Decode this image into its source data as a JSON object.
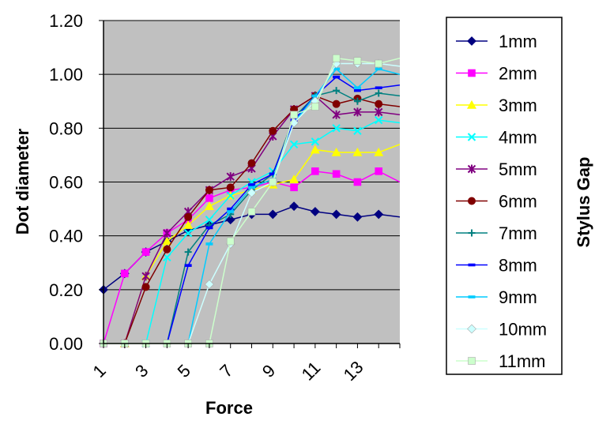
{
  "chart_data": {
    "type": "line",
    "title": "",
    "xlabel": "Force",
    "ylabel": "Dot diameter",
    "legend_title": "Stylus Gap",
    "legend_position": "right",
    "grid": "horizontal",
    "plot_background": "#c0c0c0",
    "xlim": [
      1,
      15
    ],
    "ylim": [
      0,
      1.2
    ],
    "x_ticks": [
      1,
      3,
      5,
      7,
      9,
      11,
      13
    ],
    "y_ticks": [
      "0.00",
      "0.20",
      "0.40",
      "0.60",
      "0.80",
      "1.00",
      "1.20"
    ],
    "series": [
      {
        "name": "1mm",
        "color": "#000080",
        "marker": "diamond",
        "x": [
          1,
          2,
          3,
          4,
          5,
          6,
          7,
          8,
          9,
          10,
          11,
          12,
          13,
          14,
          15
        ],
        "y": [
          0.2,
          0.26,
          0.34,
          0.38,
          0.42,
          0.44,
          0.46,
          0.48,
          0.48,
          0.51,
          0.49,
          0.48,
          0.47,
          0.48,
          0.47
        ]
      },
      {
        "name": "2mm",
        "color": "#ff00ff",
        "marker": "square",
        "x": [
          1,
          2,
          3,
          4,
          5,
          6,
          7,
          8,
          9,
          10,
          11,
          12,
          13,
          14,
          15
        ],
        "y": [
          0.0,
          0.26,
          0.34,
          0.41,
          0.46,
          0.54,
          0.57,
          0.58,
          0.6,
          0.58,
          0.64,
          0.63,
          0.6,
          0.64,
          0.6
        ]
      },
      {
        "name": "3mm",
        "color": "#ffff00",
        "marker": "triangle",
        "x": [
          2,
          3,
          4,
          5,
          6,
          7,
          8,
          9,
          10,
          11,
          12,
          13,
          14,
          15
        ],
        "y": [
          0.0,
          0.25,
          0.38,
          0.44,
          0.51,
          0.55,
          0.57,
          0.59,
          0.61,
          0.72,
          0.71,
          0.71,
          0.71,
          0.74
        ]
      },
      {
        "name": "4mm",
        "color": "#00ffff",
        "marker": "x",
        "x": [
          3,
          4,
          5,
          6,
          7,
          8,
          9,
          10,
          11,
          12,
          13,
          14,
          15
        ],
        "y": [
          0.0,
          0.32,
          0.41,
          0.46,
          0.55,
          0.6,
          0.64,
          0.74,
          0.75,
          0.8,
          0.79,
          0.83,
          0.82
        ]
      },
      {
        "name": "5mm",
        "color": "#800080",
        "marker": "star",
        "x": [
          2,
          3,
          4,
          5,
          6,
          7,
          8,
          9,
          10,
          11,
          12,
          13,
          14,
          15
        ],
        "y": [
          0.0,
          0.25,
          0.41,
          0.49,
          0.57,
          0.62,
          0.65,
          0.77,
          0.87,
          0.92,
          0.85,
          0.86,
          0.86,
          0.85
        ]
      },
      {
        "name": "6mm",
        "color": "#800000",
        "marker": "circle",
        "x": [
          2,
          3,
          4,
          5,
          6,
          7,
          8,
          9,
          10,
          11,
          12,
          13,
          14,
          15
        ],
        "y": [
          0.0,
          0.21,
          0.35,
          0.47,
          0.57,
          0.58,
          0.67,
          0.79,
          0.87,
          0.92,
          0.89,
          0.91,
          0.89,
          0.88
        ]
      },
      {
        "name": "7mm",
        "color": "#008080",
        "marker": "plus",
        "x": [
          4,
          5,
          6,
          7,
          8,
          9,
          10,
          11,
          12,
          13,
          14,
          15
        ],
        "y": [
          0.0,
          0.34,
          0.44,
          0.48,
          0.57,
          0.63,
          0.84,
          0.92,
          0.94,
          0.9,
          0.93,
          0.92
        ]
      },
      {
        "name": "8mm",
        "color": "#0000ff",
        "marker": "dash",
        "x": [
          4,
          5,
          6,
          7,
          8,
          9,
          10,
          11,
          12,
          13,
          14,
          15
        ],
        "y": [
          0.0,
          0.29,
          0.43,
          0.5,
          0.59,
          0.63,
          0.83,
          0.92,
          0.99,
          0.94,
          0.95,
          0.96
        ]
      },
      {
        "name": "9mm",
        "color": "#00ccff",
        "marker": "dash",
        "x": [
          5,
          6,
          7,
          8,
          9,
          10,
          11,
          12,
          13,
          14,
          15
        ],
        "y": [
          0.0,
          0.37,
          0.49,
          0.58,
          0.61,
          0.82,
          0.92,
          1.02,
          0.95,
          1.02,
          1.0
        ]
      },
      {
        "name": "10mm",
        "color": "#ccffff",
        "marker": "diamond",
        "x": [
          5,
          6,
          7,
          8,
          9,
          10,
          11,
          12,
          13,
          14,
          15
        ],
        "y": [
          0.0,
          0.22,
          0.37,
          0.56,
          0.6,
          0.82,
          0.9,
          1.04,
          1.04,
          1.04,
          1.03
        ]
      },
      {
        "name": "11mm",
        "color": "#ccffcc",
        "marker": "square",
        "x": [
          1,
          2,
          3,
          4,
          5,
          6,
          7,
          8,
          9,
          10,
          11,
          12,
          13,
          14,
          15
        ],
        "y": [
          0.0,
          0.0,
          0.0,
          0.0,
          0.0,
          0.0,
          0.38,
          0.49,
          0.6,
          0.85,
          0.88,
          1.06,
          1.05,
          1.04,
          1.06
        ]
      }
    ]
  }
}
